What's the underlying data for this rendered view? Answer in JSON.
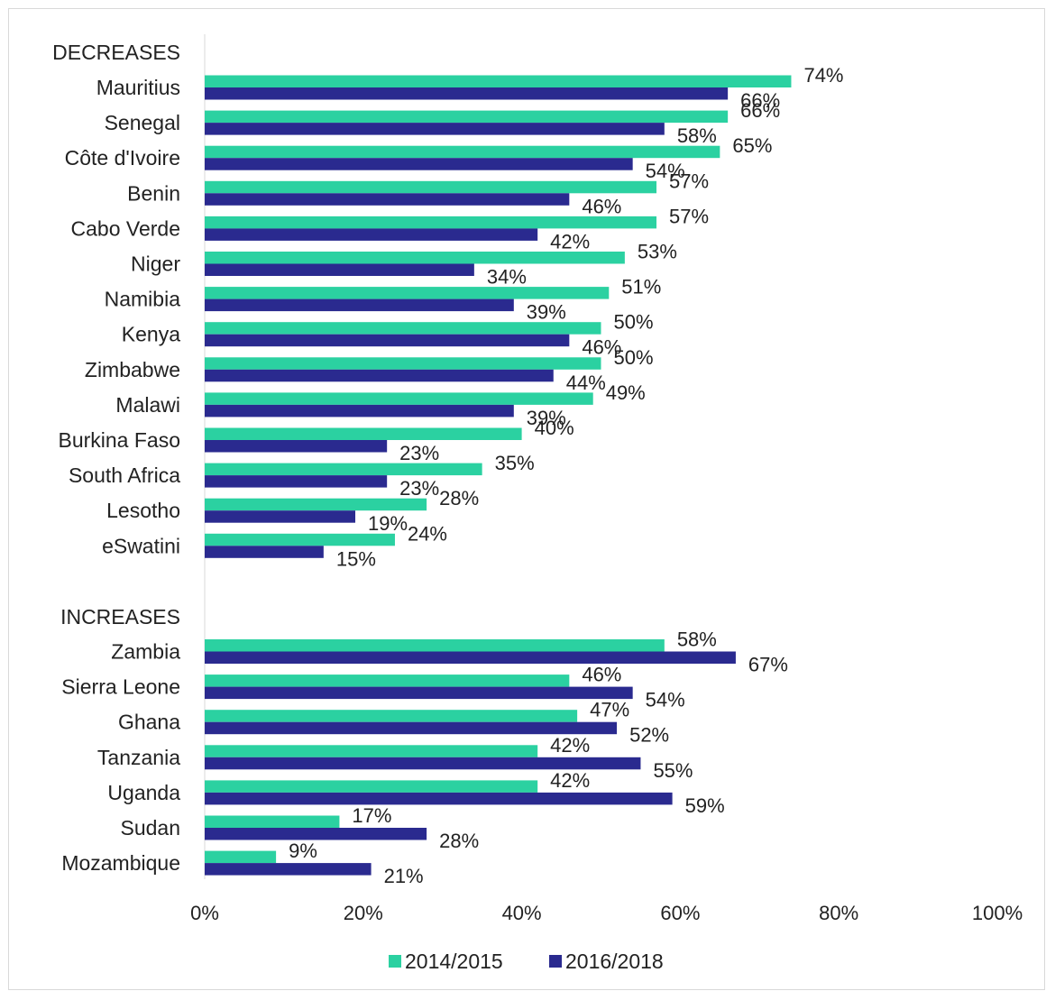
{
  "chart_data": {
    "type": "bar",
    "orientation": "horizontal",
    "xlim": [
      0,
      100
    ],
    "x_ticks": [
      "0%",
      "20%",
      "40%",
      "60%",
      "80%",
      "100%"
    ],
    "groups": [
      {
        "heading": "DECREASES",
        "categories": [
          "Mauritius",
          "Senegal",
          "Côte d'Ivoire",
          "Benin",
          "Cabo Verde",
          "Niger",
          "Namibia",
          "Kenya",
          "Zimbabwe",
          "Malawi",
          "Burkina Faso",
          "South Africa",
          "Lesotho",
          "eSwatini"
        ],
        "series": [
          {
            "name": "2014/2015",
            "values": [
              74,
              66,
              65,
              57,
              57,
              53,
              51,
              50,
              50,
              49,
              40,
              35,
              28,
              24
            ]
          },
          {
            "name": "2016/2018",
            "values": [
              66,
              58,
              54,
              46,
              42,
              34,
              39,
              46,
              44,
              39,
              23,
              23,
              19,
              15
            ]
          }
        ]
      },
      {
        "heading": "INCREASES",
        "categories": [
          "Zambia",
          "Sierra Leone",
          "Ghana",
          "Tanzania",
          "Uganda",
          "Sudan",
          "Mozambique"
        ],
        "series": [
          {
            "name": "2014/2015",
            "values": [
              58,
              46,
              47,
              42,
              42,
              17,
              9
            ]
          },
          {
            "name": "2016/2018",
            "values": [
              67,
              54,
              52,
              55,
              59,
              28,
              21
            ]
          }
        ]
      }
    ],
    "legend": {
      "position": "bottom",
      "entries": [
        {
          "name": "2014/2015",
          "color": "#2bd1a1"
        },
        {
          "name": "2016/2018",
          "color": "#2a2a8f"
        }
      ]
    }
  }
}
